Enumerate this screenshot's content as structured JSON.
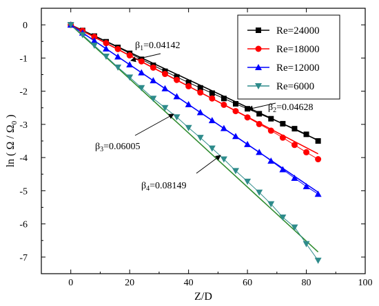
{
  "chart_data": {
    "type": "line",
    "title": "",
    "xlabel": "Z/D",
    "ylabel_main": "ln ( Ω / Ω",
    "ylabel_sub": "0",
    "ylabel_close": " )",
    "xlim": [
      -10,
      100
    ],
    "ylim": [
      -7.5,
      0.5
    ],
    "xticks": [
      0,
      20,
      40,
      60,
      80,
      100
    ],
    "yticks": [
      0,
      -1,
      -2,
      -3,
      -4,
      -5,
      -6,
      -7
    ],
    "grid": false,
    "legend_position": "top-right",
    "series": [
      {
        "name": "Re=24000",
        "marker": "square",
        "color": "#000000",
        "x": [
          0,
          4,
          8,
          12,
          16,
          20,
          24,
          28,
          32,
          36,
          40,
          44,
          48,
          52,
          56,
          60,
          64,
          68,
          72,
          76,
          80,
          84
        ],
        "y": [
          0,
          -0.17,
          -0.34,
          -0.51,
          -0.68,
          -0.86,
          -1.04,
          -1.22,
          -1.4,
          -1.57,
          -1.74,
          -1.9,
          -2.06,
          -2.22,
          -2.38,
          -2.53,
          -2.68,
          -2.83,
          -2.98,
          -3.13,
          -3.3,
          -3.5
        ],
        "fit_slope": -0.04142
      },
      {
        "name": "Re=18000",
        "marker": "circle",
        "color": "#ff0000",
        "x": [
          0,
          4,
          8,
          12,
          16,
          20,
          24,
          28,
          32,
          36,
          40,
          44,
          48,
          52,
          56,
          60,
          64,
          68,
          72,
          76,
          80,
          84
        ],
        "y": [
          0,
          -0.18,
          -0.36,
          -0.55,
          -0.73,
          -0.92,
          -1.1,
          -1.29,
          -1.48,
          -1.66,
          -1.85,
          -2.04,
          -2.22,
          -2.41,
          -2.6,
          -2.79,
          -2.99,
          -3.19,
          -3.4,
          -3.62,
          -3.84,
          -4.05
        ],
        "fit_slope": -0.04628
      },
      {
        "name": "Re=12000",
        "marker": "triangle-up",
        "color": "#0000ff",
        "x": [
          0,
          4,
          8,
          12,
          16,
          20,
          24,
          28,
          32,
          36,
          40,
          44,
          48,
          52,
          56,
          60,
          64,
          68,
          72,
          76,
          80,
          84
        ],
        "y": [
          0,
          -0.24,
          -0.48,
          -0.72,
          -0.96,
          -1.2,
          -1.44,
          -1.68,
          -1.92,
          -2.16,
          -2.4,
          -2.64,
          -2.88,
          -3.12,
          -3.36,
          -3.6,
          -3.84,
          -4.1,
          -4.36,
          -4.62,
          -4.87,
          -5.1
        ],
        "fit_slope": -0.06005
      },
      {
        "name": "Re=6000",
        "marker": "triangle-down",
        "color": "#2e8b8b",
        "fit_color": "#2e8b2e",
        "x": [
          0,
          4,
          8,
          12,
          16,
          20,
          24,
          28,
          32,
          36,
          40,
          44,
          48,
          52,
          56,
          60,
          64,
          68,
          72,
          76,
          80,
          84
        ],
        "y": [
          0,
          -0.3,
          -0.62,
          -0.95,
          -1.28,
          -1.58,
          -1.9,
          -2.22,
          -2.5,
          -2.78,
          -3.1,
          -3.4,
          -3.72,
          -4.05,
          -4.4,
          -4.72,
          -5.05,
          -5.4,
          -5.8,
          -6.1,
          -6.6,
          -7.1
        ],
        "fit_slope": -0.08149
      }
    ],
    "annotations": [
      {
        "name": "beta-1",
        "symbol": "β",
        "sub": "1",
        "value": "=0.04142",
        "series": 0,
        "at_x": 24
      },
      {
        "name": "beta-2",
        "symbol": "β",
        "sub": "2",
        "value": "=0.04628",
        "series": 1,
        "at_x": 64
      },
      {
        "name": "beta-3",
        "symbol": "β",
        "sub": "3",
        "value": "=0.06005",
        "series": 2,
        "at_x": 36
      },
      {
        "name": "beta-4",
        "symbol": "β",
        "sub": "4",
        "value": "=0.08149",
        "series": 3,
        "at_x": 52
      }
    ]
  }
}
